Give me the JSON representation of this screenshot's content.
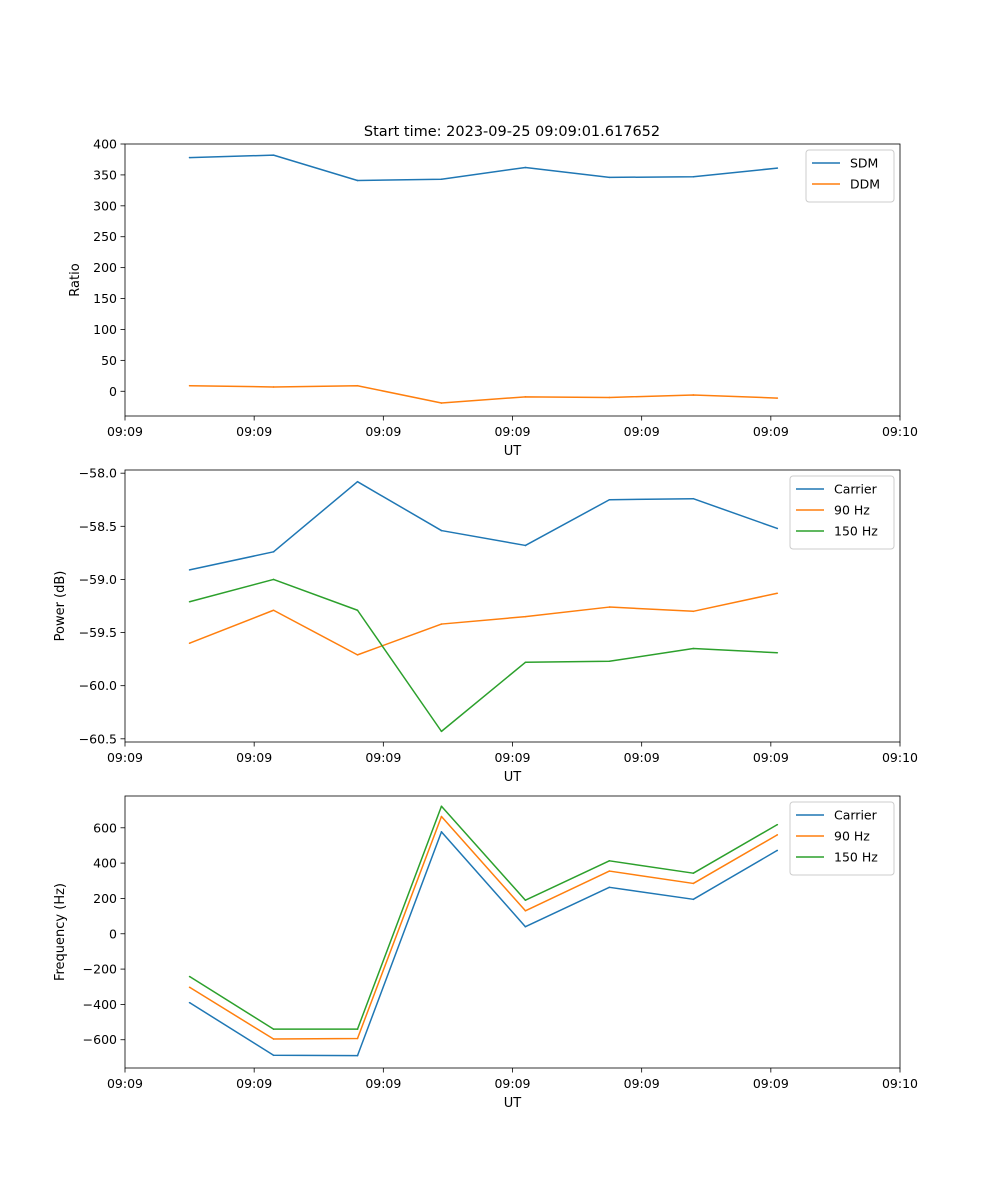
{
  "figure": {
    "title": "Start time: 2023-09-25 09:09:01.617652"
  },
  "colors": {
    "c0": "#1f77b4",
    "c1": "#ff7f0e",
    "c2": "#2ca02c"
  },
  "chart_data": [
    {
      "type": "line",
      "title": "Start time: 2023-09-25 09:09:01.617652",
      "xlabel": "UT",
      "ylabel": "Ratio",
      "xlim": [
        0,
        6
      ],
      "x": [
        0.5,
        1.15,
        1.8,
        2.45,
        3.1,
        3.75,
        4.4,
        5.05
      ],
      "xticks": [
        {
          "v": 0,
          "label": "09:09"
        },
        {
          "v": 1,
          "label": "09:09"
        },
        {
          "v": 2,
          "label": "09:09"
        },
        {
          "v": 3,
          "label": "09:09"
        },
        {
          "v": 4,
          "label": "09:09"
        },
        {
          "v": 5,
          "label": "09:09"
        },
        {
          "v": 6,
          "label": "09:10"
        }
      ],
      "ylim": [
        -40,
        400
      ],
      "yticks": [
        0,
        50,
        100,
        150,
        200,
        250,
        300,
        350,
        400
      ],
      "ytick_labels": [
        "0",
        "50",
        "100",
        "150",
        "200",
        "250",
        "300",
        "350",
        "400"
      ],
      "legend": "upper right",
      "series": [
        {
          "name": "SDM",
          "color": "#1f77b4",
          "values": [
            378,
            382,
            341,
            343,
            362,
            346,
            347,
            361
          ]
        },
        {
          "name": "DDM",
          "color": "#ff7f0e",
          "values": [
            9,
            7,
            9,
            -19,
            -9,
            -10,
            -6,
            -11
          ]
        }
      ]
    },
    {
      "type": "line",
      "title": "",
      "xlabel": "UT",
      "ylabel": "Power (dB)",
      "xlim": [
        0,
        6
      ],
      "x": [
        0.5,
        1.15,
        1.8,
        2.45,
        3.1,
        3.75,
        4.4,
        5.05
      ],
      "xticks": [
        {
          "v": 0,
          "label": "09:09"
        },
        {
          "v": 1,
          "label": "09:09"
        },
        {
          "v": 2,
          "label": "09:09"
        },
        {
          "v": 3,
          "label": "09:09"
        },
        {
          "v": 4,
          "label": "09:09"
        },
        {
          "v": 5,
          "label": "09:09"
        },
        {
          "v": 6,
          "label": "09:10"
        }
      ],
      "ylim": [
        -60.53,
        -57.97
      ],
      "yticks": [
        -60.5,
        -60.0,
        -59.5,
        -59.0,
        -58.5,
        -58.0
      ],
      "ytick_labels": [
        "−60.5",
        "−60.0",
        "−59.5",
        "−59.0",
        "−58.5",
        "−58.0"
      ],
      "legend": "upper right",
      "series": [
        {
          "name": "Carrier",
          "color": "#1f77b4",
          "values": [
            -58.91,
            -58.74,
            -58.08,
            -58.54,
            -58.68,
            -58.25,
            -58.24,
            -58.52
          ]
        },
        {
          "name": "90 Hz",
          "color": "#ff7f0e",
          "values": [
            -59.6,
            -59.29,
            -59.71,
            -59.42,
            -59.35,
            -59.26,
            -59.3,
            -59.13
          ]
        },
        {
          "name": "150 Hz",
          "color": "#2ca02c",
          "values": [
            -59.21,
            -59.0,
            -59.29,
            -60.43,
            -59.78,
            -59.77,
            -59.65,
            -59.69
          ]
        }
      ]
    },
    {
      "type": "line",
      "title": "",
      "xlabel": "UT",
      "ylabel": "Frequency (Hz)",
      "xlim": [
        0,
        6
      ],
      "x": [
        0.5,
        1.15,
        1.8,
        2.45,
        3.1,
        3.75,
        4.4,
        5.05
      ],
      "xticks": [
        {
          "v": 0,
          "label": "09:09"
        },
        {
          "v": 1,
          "label": "09:09"
        },
        {
          "v": 2,
          "label": "09:09"
        },
        {
          "v": 3,
          "label": "09:09"
        },
        {
          "v": 4,
          "label": "09:09"
        },
        {
          "v": 5,
          "label": "09:09"
        },
        {
          "v": 6,
          "label": "09:10"
        }
      ],
      "ylim": [
        -760,
        780
      ],
      "yticks": [
        -600,
        -400,
        -200,
        0,
        200,
        400,
        600
      ],
      "ytick_labels": [
        "−600",
        "−400",
        "−200",
        "0",
        "200",
        "400",
        "600"
      ],
      "legend": "upper right",
      "series": [
        {
          "name": "Carrier",
          "color": "#1f77b4",
          "values": [
            -390,
            -688,
            -690,
            577,
            40,
            263,
            195,
            472
          ]
        },
        {
          "name": "90 Hz",
          "color": "#ff7f0e",
          "values": [
            -303,
            -596,
            -593,
            664,
            130,
            355,
            285,
            560
          ]
        },
        {
          "name": "150 Hz",
          "color": "#2ca02c",
          "values": [
            -242,
            -540,
            -540,
            722,
            190,
            413,
            343,
            618
          ]
        }
      ]
    }
  ]
}
